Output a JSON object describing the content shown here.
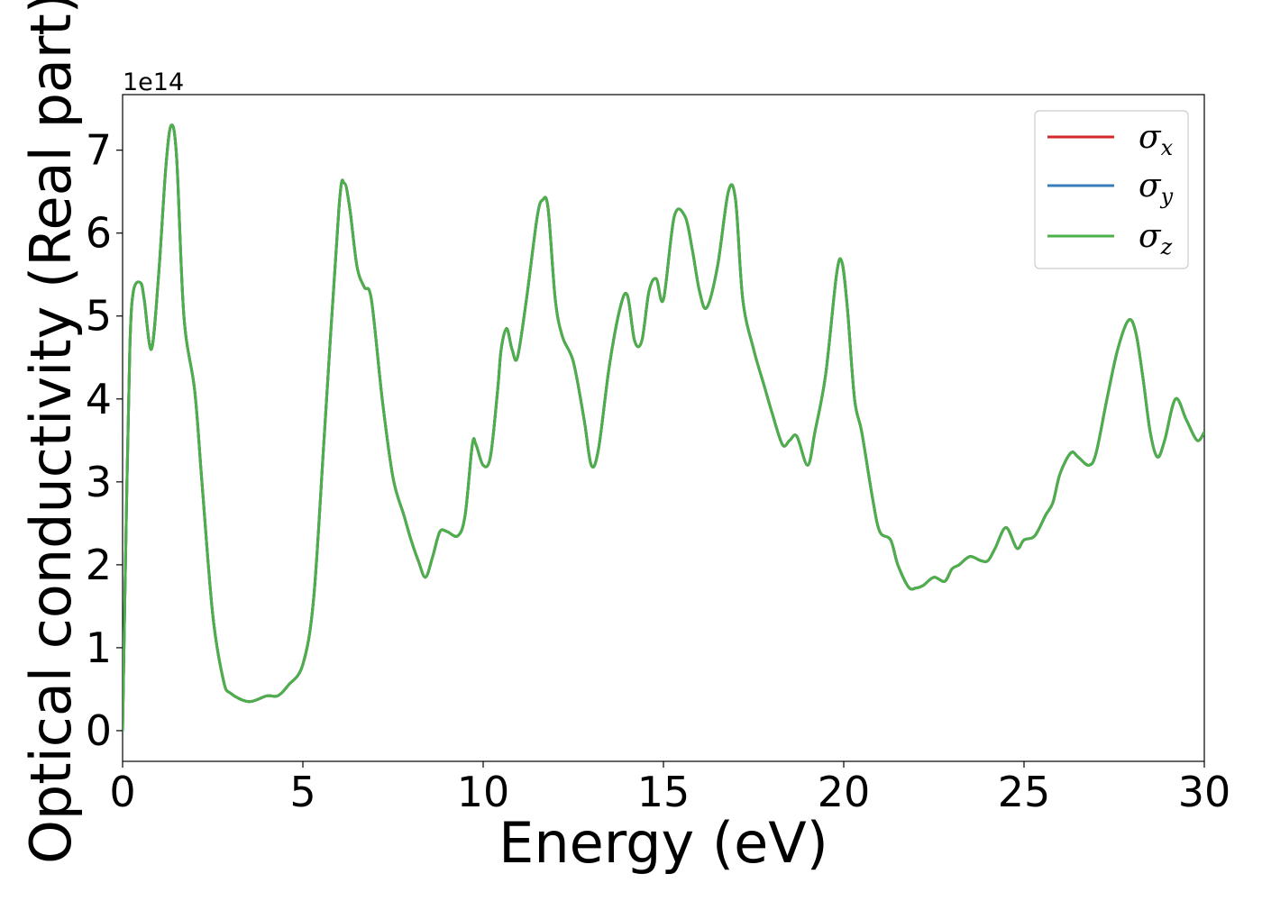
{
  "chart_data": {
    "type": "line",
    "xlabel": "Energy (eV)",
    "ylabel": "Optical conductivity (Real part)",
    "y_offset_label": "1e14",
    "xlim": [
      0,
      30
    ],
    "ylim": [
      -0.37,
      7.67
    ],
    "x_ticks": [
      0,
      5,
      10,
      15,
      20,
      25,
      30
    ],
    "x_tick_labels": [
      "0",
      "5",
      "10",
      "15",
      "20",
      "25",
      "30"
    ],
    "y_ticks": [
      0,
      1,
      2,
      3,
      4,
      5,
      6,
      7
    ],
    "y_tick_labels": [
      "0",
      "1",
      "2",
      "3",
      "4",
      "5",
      "6",
      "7"
    ],
    "grid": false,
    "legend_position": "top-right",
    "x": [
      0,
      0.1,
      0.2,
      0.3,
      0.5,
      0.6,
      0.8,
      1.0,
      1.2,
      1.35,
      1.5,
      1.7,
      2.0,
      2.2,
      2.5,
      2.8,
      3.0,
      3.5,
      4.0,
      4.3,
      4.6,
      5.0,
      5.3,
      5.6,
      6.0,
      6.15,
      6.3,
      6.5,
      6.7,
      6.9,
      7.2,
      7.5,
      7.8,
      8.0,
      8.2,
      8.4,
      8.6,
      8.8,
      9.0,
      9.3,
      9.5,
      9.7,
      9.8,
      10.0,
      10.2,
      10.4,
      10.5,
      10.65,
      10.8,
      10.95,
      11.2,
      11.5,
      11.65,
      11.8,
      12.0,
      12.2,
      12.5,
      12.8,
      13.0,
      13.2,
      13.5,
      13.8,
      14.0,
      14.2,
      14.4,
      14.6,
      14.8,
      15.0,
      15.3,
      15.6,
      15.8,
      16.0,
      16.2,
      16.5,
      16.8,
      17.0,
      17.2,
      17.5,
      17.8,
      18.0,
      18.3,
      18.5,
      18.7,
      19.0,
      19.2,
      19.5,
      19.8,
      19.95,
      20.1,
      20.3,
      20.5,
      20.8,
      21.0,
      21.3,
      21.5,
      21.8,
      22.0,
      22.2,
      22.5,
      22.8,
      23.0,
      23.2,
      23.5,
      23.8,
      24.0,
      24.2,
      24.5,
      24.8,
      25.0,
      25.3,
      25.6,
      25.8,
      26.0,
      26.3,
      26.5,
      26.8,
      27.0,
      27.3,
      27.6,
      27.9,
      28.1,
      28.3,
      28.5,
      28.7,
      28.9,
      29.2,
      29.5,
      29.8,
      30.0
    ],
    "series": [
      {
        "name": "σx",
        "color": "#d62728",
        "values": [
          0.0,
          2.5,
          4.6,
          5.3,
          5.4,
          5.2,
          4.6,
          5.5,
          6.8,
          7.3,
          6.9,
          5.0,
          4.1,
          3.0,
          1.4,
          0.6,
          0.45,
          0.35,
          0.42,
          0.42,
          0.55,
          0.8,
          1.6,
          3.6,
          6.3,
          6.6,
          6.3,
          5.6,
          5.35,
          5.2,
          4.0,
          3.05,
          2.6,
          2.3,
          2.05,
          1.85,
          2.1,
          2.4,
          2.4,
          2.35,
          2.6,
          3.45,
          3.45,
          3.2,
          3.3,
          4.1,
          4.6,
          4.85,
          4.6,
          4.5,
          5.2,
          6.2,
          6.4,
          6.3,
          5.2,
          4.75,
          4.45,
          3.75,
          3.2,
          3.4,
          4.4,
          5.1,
          5.25,
          4.7,
          4.7,
          5.3,
          5.45,
          5.2,
          6.2,
          6.2,
          5.8,
          5.3,
          5.1,
          5.6,
          6.5,
          6.4,
          5.2,
          4.6,
          4.15,
          3.85,
          3.45,
          3.5,
          3.55,
          3.2,
          3.6,
          4.3,
          5.5,
          5.65,
          5.1,
          4.0,
          3.6,
          2.8,
          2.4,
          2.3,
          2.0,
          1.73,
          1.72,
          1.75,
          1.85,
          1.8,
          1.95,
          2.0,
          2.1,
          2.05,
          2.05,
          2.2,
          2.45,
          2.2,
          2.3,
          2.35,
          2.6,
          2.75,
          3.1,
          3.35,
          3.3,
          3.2,
          3.35,
          4.0,
          4.6,
          4.95,
          4.8,
          4.25,
          3.6,
          3.3,
          3.5,
          4.0,
          3.75,
          3.5,
          3.6
        ]
      },
      {
        "name": "σy",
        "color": "#377eb8",
        "values": [
          0.0,
          2.5,
          4.6,
          5.3,
          5.4,
          5.2,
          4.6,
          5.5,
          6.8,
          7.3,
          6.9,
          5.0,
          4.1,
          3.0,
          1.4,
          0.6,
          0.45,
          0.35,
          0.42,
          0.42,
          0.55,
          0.8,
          1.6,
          3.6,
          6.3,
          6.6,
          6.3,
          5.6,
          5.35,
          5.2,
          4.0,
          3.05,
          2.6,
          2.3,
          2.05,
          1.85,
          2.1,
          2.4,
          2.4,
          2.35,
          2.6,
          3.45,
          3.45,
          3.2,
          3.3,
          4.1,
          4.6,
          4.85,
          4.6,
          4.5,
          5.2,
          6.2,
          6.4,
          6.3,
          5.2,
          4.75,
          4.45,
          3.75,
          3.2,
          3.4,
          4.4,
          5.1,
          5.25,
          4.7,
          4.7,
          5.3,
          5.45,
          5.2,
          6.2,
          6.2,
          5.8,
          5.3,
          5.1,
          5.6,
          6.5,
          6.4,
          5.2,
          4.6,
          4.15,
          3.85,
          3.45,
          3.5,
          3.55,
          3.2,
          3.6,
          4.3,
          5.5,
          5.65,
          5.1,
          4.0,
          3.6,
          2.8,
          2.4,
          2.3,
          2.0,
          1.73,
          1.72,
          1.75,
          1.85,
          1.8,
          1.95,
          2.0,
          2.1,
          2.05,
          2.05,
          2.2,
          2.45,
          2.2,
          2.3,
          2.35,
          2.6,
          2.75,
          3.1,
          3.35,
          3.3,
          3.2,
          3.35,
          4.0,
          4.6,
          4.95,
          4.8,
          4.25,
          3.6,
          3.3,
          3.5,
          4.0,
          3.75,
          3.5,
          3.6
        ]
      },
      {
        "name": "σz",
        "color": "#4daf4a",
        "values": [
          0.0,
          2.5,
          4.6,
          5.3,
          5.4,
          5.2,
          4.6,
          5.5,
          6.8,
          7.3,
          6.9,
          5.0,
          4.1,
          3.0,
          1.4,
          0.6,
          0.45,
          0.35,
          0.42,
          0.42,
          0.55,
          0.8,
          1.6,
          3.6,
          6.3,
          6.6,
          6.3,
          5.6,
          5.35,
          5.2,
          4.0,
          3.05,
          2.6,
          2.3,
          2.05,
          1.85,
          2.1,
          2.4,
          2.4,
          2.35,
          2.6,
          3.45,
          3.45,
          3.2,
          3.3,
          4.1,
          4.6,
          4.85,
          4.6,
          4.5,
          5.2,
          6.2,
          6.4,
          6.3,
          5.2,
          4.75,
          4.45,
          3.75,
          3.2,
          3.4,
          4.4,
          5.1,
          5.25,
          4.7,
          4.7,
          5.3,
          5.45,
          5.2,
          6.2,
          6.2,
          5.8,
          5.3,
          5.1,
          5.6,
          6.5,
          6.4,
          5.2,
          4.6,
          4.15,
          3.85,
          3.45,
          3.5,
          3.55,
          3.2,
          3.6,
          4.3,
          5.5,
          5.65,
          5.1,
          4.0,
          3.6,
          2.8,
          2.4,
          2.3,
          2.0,
          1.73,
          1.72,
          1.75,
          1.85,
          1.8,
          1.95,
          2.0,
          2.1,
          2.05,
          2.05,
          2.2,
          2.45,
          2.2,
          2.3,
          2.35,
          2.6,
          2.75,
          3.1,
          3.35,
          3.3,
          3.2,
          3.35,
          4.0,
          4.6,
          4.95,
          4.8,
          4.25,
          3.6,
          3.3,
          3.5,
          4.0,
          3.75,
          3.5,
          3.6
        ]
      }
    ],
    "legend": [
      {
        "symbol": "σ",
        "sub": "x",
        "color": "#d62728"
      },
      {
        "symbol": "σ",
        "sub": "y",
        "color": "#377eb8"
      },
      {
        "symbol": "σ",
        "sub": "z",
        "color": "#4daf4a"
      }
    ]
  }
}
